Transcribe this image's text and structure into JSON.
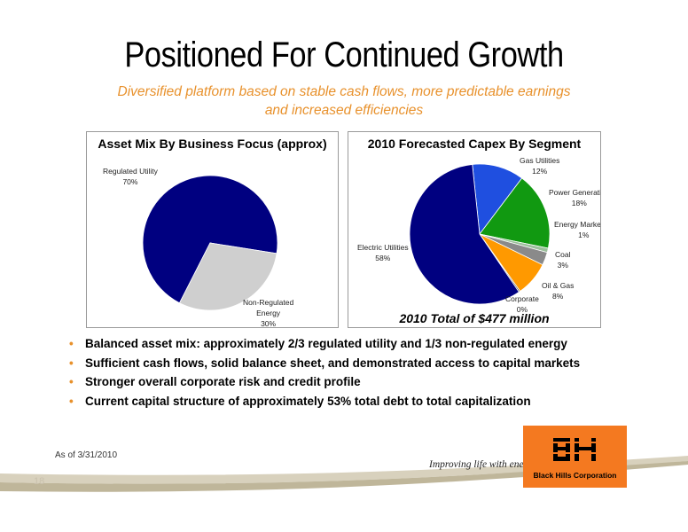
{
  "slide": {
    "title": "Positioned For Continued Growth",
    "subtitle_line1": "Diversified platform based on stable cash flows, more predictable earnings",
    "subtitle_line2": "and increased efficiencies",
    "page_number": "18",
    "as_of": "As of 3/31/2010",
    "slogan": "Improving life with energy",
    "company": "Black Hills Corporation",
    "accent_color": "#e8912c"
  },
  "bullets": [
    "Balanced asset mix: approximately 2/3 regulated utility and 1/3 non-regulated energy",
    "Sufficient cash flows, solid balance sheet, and demonstrated access to capital markets",
    "Stronger overall corporate risk and credit profile",
    "Current capital structure of approximately 53% total debt to total capitalization"
  ],
  "chart_data": [
    {
      "type": "pie",
      "title": "Asset Mix By Business Focus (approx)",
      "slices": [
        {
          "label": "Regulated Utility",
          "pct_label": "70%",
          "value": 70,
          "color": "#000080"
        },
        {
          "label": "Non-Regulated Energy",
          "pct_label": "30%",
          "value": 30,
          "color": "#cfcfcf"
        }
      ]
    },
    {
      "type": "pie",
      "title": "2010 Forecasted Capex By Segment",
      "footer": "2010 Total of $477 million",
      "slices": [
        {
          "label": "Gas Utilities",
          "pct_label": "12%",
          "value": 12,
          "color": "#1f4fe0"
        },
        {
          "label": "Power Generation",
          "pct_label": "18%",
          "value": 18,
          "color": "#119911"
        },
        {
          "label": "Energy Marketing",
          "pct_label": "1%",
          "value": 1,
          "color": "#9bbf9b"
        },
        {
          "label": "Coal",
          "pct_label": "3%",
          "value": 3,
          "color": "#8a8a8a"
        },
        {
          "label": "Oil & Gas",
          "pct_label": "8%",
          "value": 8,
          "color": "#ff9900"
        },
        {
          "label": "Corporate",
          "pct_label": "0%",
          "value": 0.3,
          "color": "#333333"
        },
        {
          "label": "Electric Utilities",
          "pct_label": "58%",
          "value": 58,
          "color": "#000080"
        }
      ]
    }
  ]
}
